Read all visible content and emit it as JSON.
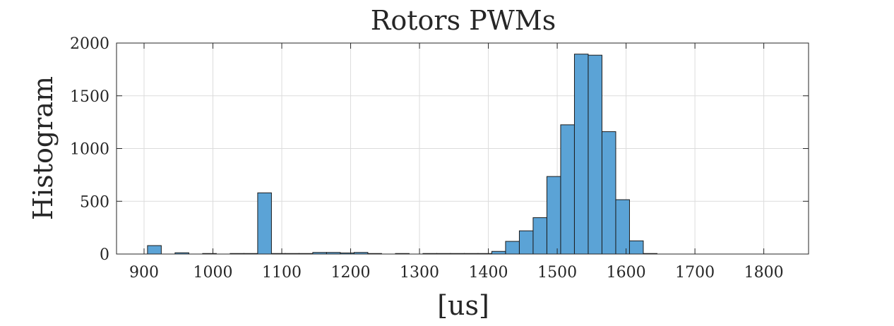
{
  "chart_data": {
    "type": "bar",
    "title": "Rotors PWMs",
    "xlabel": "[us]",
    "ylabel": "Histogram",
    "xlim": [
      860,
      1865
    ],
    "ylim": [
      0,
      2000
    ],
    "xticks": [
      900,
      1000,
      1100,
      1200,
      1300,
      1400,
      1500,
      1600,
      1700,
      1800
    ],
    "yticks": [
      0,
      500,
      1000,
      1500,
      2000
    ],
    "xtick_labels": [
      "900",
      "1000",
      "1100",
      "1200",
      "1300",
      "1400",
      "1500",
      "1600",
      "1700",
      "1800"
    ],
    "ytick_labels": [
      "0",
      "500",
      "1000",
      "1500",
      "2000"
    ],
    "grid": true,
    "bin_width": 20,
    "bins": [
      {
        "x0": 905,
        "x1": 925,
        "value": 80
      },
      {
        "x0": 945,
        "x1": 965,
        "value": 12
      },
      {
        "x0": 985,
        "x1": 1005,
        "value": 5
      },
      {
        "x0": 1025,
        "x1": 1045,
        "value": 5
      },
      {
        "x0": 1045,
        "x1": 1065,
        "value": 5
      },
      {
        "x0": 1065,
        "x1": 1085,
        "value": 580
      },
      {
        "x0": 1085,
        "x1": 1105,
        "value": 5
      },
      {
        "x0": 1105,
        "x1": 1125,
        "value": 5
      },
      {
        "x0": 1125,
        "x1": 1145,
        "value": 5
      },
      {
        "x0": 1145,
        "x1": 1165,
        "value": 15
      },
      {
        "x0": 1165,
        "x1": 1185,
        "value": 15
      },
      {
        "x0": 1185,
        "x1": 1205,
        "value": 10
      },
      {
        "x0": 1205,
        "x1": 1225,
        "value": 15
      },
      {
        "x0": 1225,
        "x1": 1245,
        "value": 5
      },
      {
        "x0": 1265,
        "x1": 1285,
        "value": 5
      },
      {
        "x0": 1305,
        "x1": 1325,
        "value": 5
      },
      {
        "x0": 1325,
        "x1": 1345,
        "value": 5
      },
      {
        "x0": 1345,
        "x1": 1365,
        "value": 5
      },
      {
        "x0": 1365,
        "x1": 1385,
        "value": 5
      },
      {
        "x0": 1385,
        "x1": 1405,
        "value": 5
      },
      {
        "x0": 1405,
        "x1": 1425,
        "value": 25
      },
      {
        "x0": 1425,
        "x1": 1445,
        "value": 120
      },
      {
        "x0": 1445,
        "x1": 1465,
        "value": 220
      },
      {
        "x0": 1465,
        "x1": 1485,
        "value": 345
      },
      {
        "x0": 1485,
        "x1": 1505,
        "value": 735
      },
      {
        "x0": 1505,
        "x1": 1525,
        "value": 1225
      },
      {
        "x0": 1525,
        "x1": 1545,
        "value": 1895
      },
      {
        "x0": 1545,
        "x1": 1565,
        "value": 1885
      },
      {
        "x0": 1565,
        "x1": 1585,
        "value": 1160
      },
      {
        "x0": 1585,
        "x1": 1605,
        "value": 515
      },
      {
        "x0": 1605,
        "x1": 1625,
        "value": 125
      },
      {
        "x0": 1625,
        "x1": 1645,
        "value": 5
      }
    ],
    "colors": {
      "bar_fill": "#5ba3d6",
      "bar_edge": "#1a1a1a",
      "axis": "#262626",
      "grid": "#dcdcdc",
      "background": "#ffffff"
    }
  }
}
